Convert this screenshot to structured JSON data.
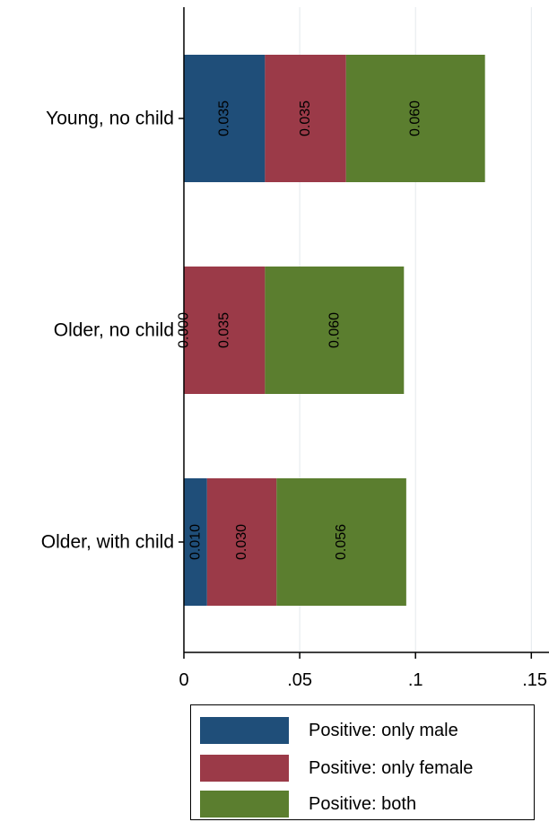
{
  "chart_data": {
    "type": "bar",
    "orientation": "horizontal",
    "stacked": true,
    "categories": [
      "Young, no child",
      "Older, no child",
      "Older, with child"
    ],
    "series": [
      {
        "name": "Positive: only male",
        "values": [
          0.035,
          0.0,
          0.01
        ],
        "labels": [
          "0.035",
          "0.000",
          "0.010"
        ],
        "color": "#1f4e79"
      },
      {
        "name": "Positive: only female",
        "values": [
          0.035,
          0.035,
          0.03
        ],
        "labels": [
          "0.035",
          "0.035",
          "0.030"
        ],
        "color": "#9b3a48"
      },
      {
        "name": "Positive: both",
        "values": [
          0.06,
          0.06,
          0.056
        ],
        "labels": [
          "0.060",
          "0.060",
          "0.056"
        ],
        "color": "#5b7e2f"
      }
    ],
    "xlim": [
      0,
      0.15
    ],
    "xticks": [
      0,
      0.05,
      0.1,
      0.15
    ],
    "xtick_labels": [
      "0",
      ".05",
      ".1",
      ".15"
    ],
    "grid": true,
    "legend_position": "bottom",
    "title": "",
    "xlabel": "",
    "ylabel": ""
  }
}
